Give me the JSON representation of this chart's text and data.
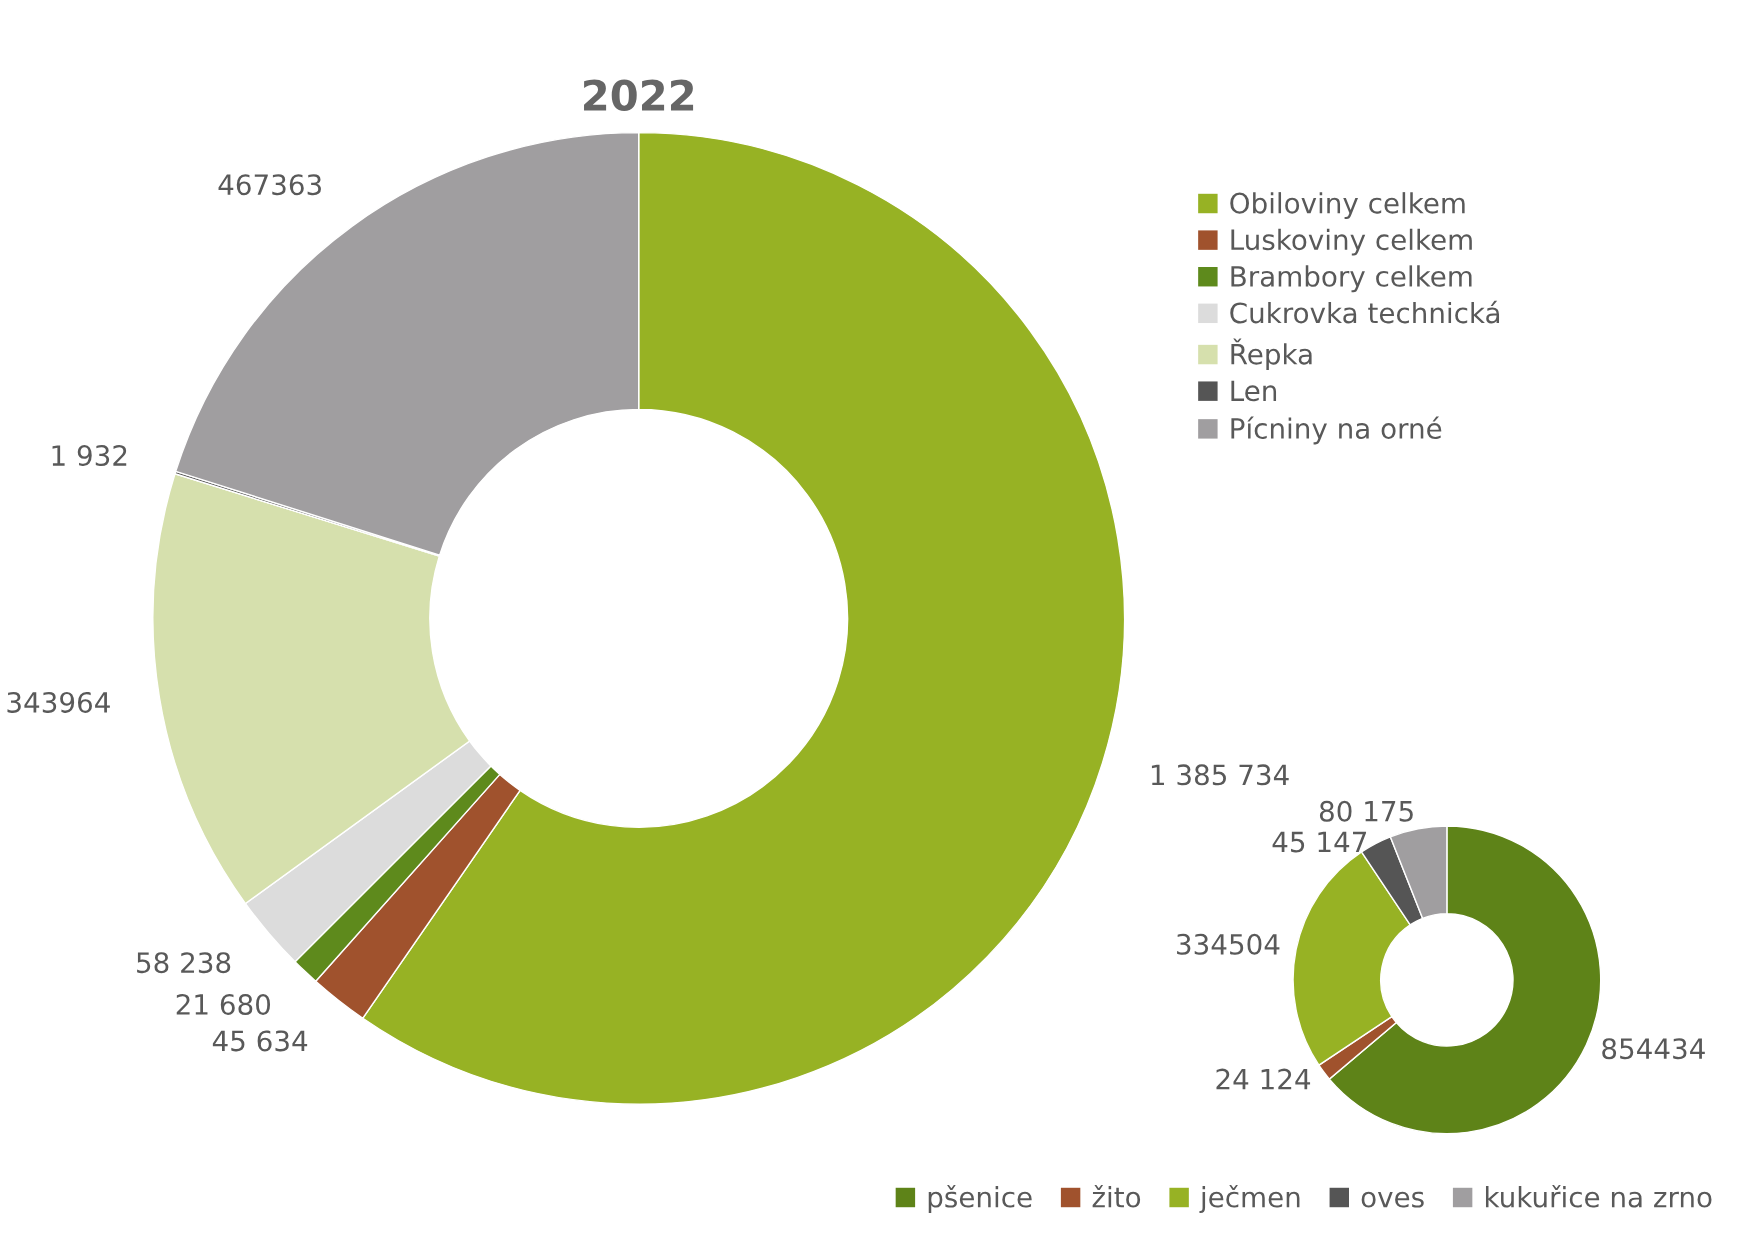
{
  "chart_data": [
    {
      "type": "donut",
      "title": "2022",
      "categories": [
        "Obiloviny celkem",
        "Luskoviny celkem",
        "Brambory celkem",
        "Cukrovka technická",
        "Řepka",
        "Len",
        "Pícniny na orné"
      ],
      "values": [
        1385734,
        45634,
        21680,
        58238,
        343964,
        1932,
        467363
      ],
      "value_labels": [
        "1 385 734",
        "45 634",
        "21 680",
        "58 238",
        "343964",
        "1 932",
        "467363"
      ],
      "colors": [
        "#97b224",
        "#a0522d",
        "#5e8a1c",
        "#dcdcdc",
        "#d6e0ad",
        "#555555",
        "#a09ea0"
      ],
      "legend": "right"
    },
    {
      "type": "donut",
      "categories": [
        "pšenice",
        "žito",
        "ječmen",
        "oves",
        "kukuřice na zrno"
      ],
      "values": [
        854434,
        24124,
        334504,
        45147,
        80175
      ],
      "value_labels": [
        "854434",
        "24 124",
        "334504",
        "45 147",
        "80 175"
      ],
      "colors": [
        "#5e8318",
        "#a0522d",
        "#97b224",
        "#555555",
        "#a09ea0"
      ],
      "legend": "bottom"
    }
  ]
}
